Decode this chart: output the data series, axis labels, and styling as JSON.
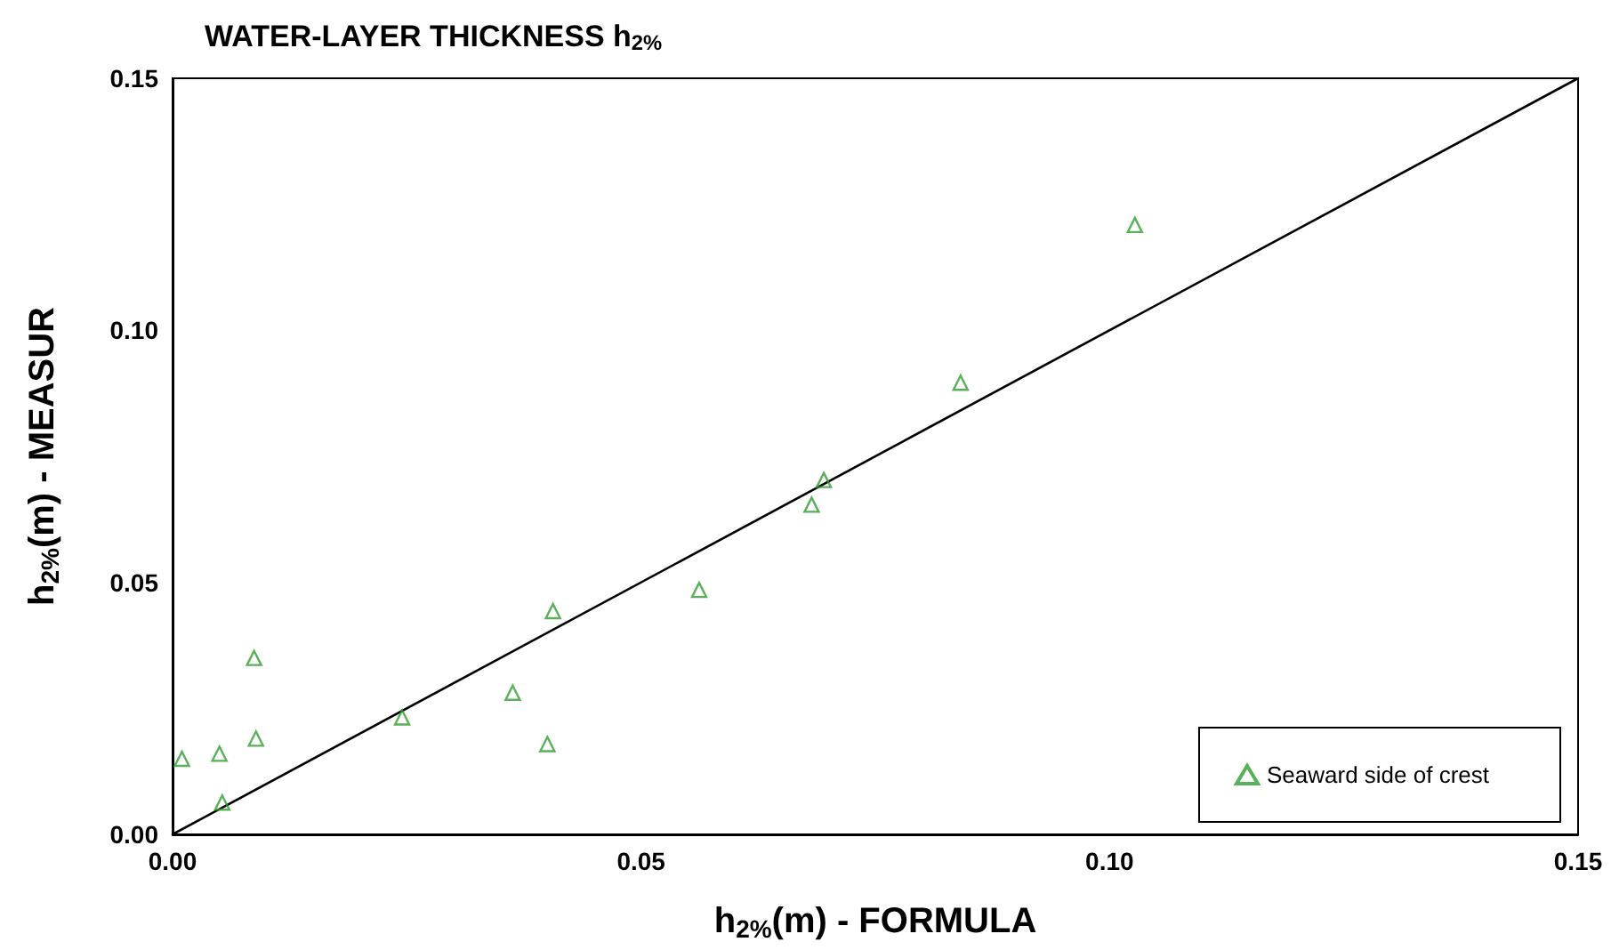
{
  "chart_data": {
    "type": "scatter",
    "title": "WATER-LAYER THICKNESS h$_{2%}$",
    "xlabel": "h$_{2%}$(m) - FORMULA",
    "ylabel": "h$_{2%}$(m) - MEASUR",
    "xlim": [
      0,
      0.15
    ],
    "ylim": [
      0,
      0.15
    ],
    "xticks": [
      {
        "value": 0,
        "label": "0.00"
      },
      {
        "value": 0.05,
        "label": "0.05"
      },
      {
        "value": 0.1,
        "label": "0.10"
      },
      {
        "value": 0.15,
        "label": "0.15"
      }
    ],
    "yticks": [
      {
        "value": 0,
        "label": "0.00"
      },
      {
        "value": 0.05,
        "label": "0.05"
      },
      {
        "value": 0.1,
        "label": "0.10"
      },
      {
        "value": 0.15,
        "label": "0.15"
      }
    ],
    "grid": false,
    "legend": "bottom right",
    "marker": "triangle",
    "series": [
      {
        "name": "Seaward side of crest",
        "color": "#2e9e2e",
        "x": [
          0.001,
          0.005,
          0.0053,
          0.0087,
          0.0089,
          0.0245,
          0.0363,
          0.04,
          0.0406,
          0.0562,
          0.0682,
          0.0695,
          0.0841,
          0.1027
        ],
        "values": [
          0.015,
          0.016,
          0.0063,
          0.035,
          0.019,
          0.0232,
          0.0281,
          0.0179,
          0.0443,
          0.0485,
          0.0654,
          0.0703,
          0.0896,
          0.1209
        ]
      },
      {
        "type": "line",
        "color": "#000000",
        "x": [
          0,
          0.15
        ],
        "values": [
          0,
          0.15
        ],
        "marker": "none",
        "line_style": "solid"
      }
    ]
  }
}
